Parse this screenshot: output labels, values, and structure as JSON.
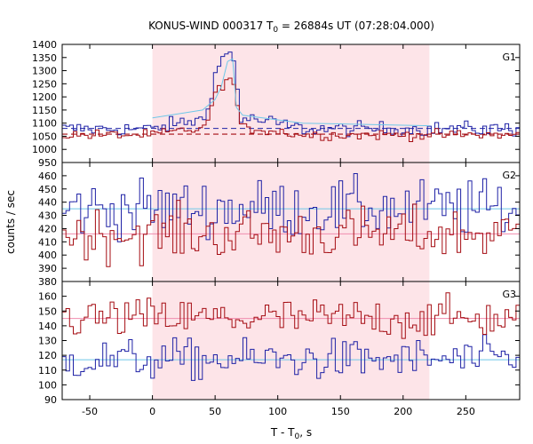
{
  "figure": {
    "title_main": "KONUS-WIND 000317 T",
    "title_sub": "0",
    "title_rest": " = 26884s UT (07:28:04.000)",
    "xlabel_main": "T - T",
    "xlabel_sub": "0",
    "xlabel_rest": ", s",
    "ylabel": "counts / sec"
  },
  "chart_data": {
    "type": "line",
    "x_range": [
      -72,
      293
    ],
    "x_ticks": [
      -50,
      0,
      50,
      100,
      150,
      200,
      250
    ],
    "shaded_interval": [
      0,
      221
    ],
    "bin_width": 2.944,
    "colors": {
      "blue": "#1f22a6",
      "red": "#a50d13",
      "light_blue": "#6ec8e8",
      "pink": "#f08cae",
      "shade": "#fde4e8",
      "dashed": "#a50d13"
    },
    "panels": [
      {
        "label": "G1",
        "ylim": [
          950,
          1400
        ],
        "yticks": [
          950,
          1000,
          1050,
          1100,
          1150,
          1200,
          1250,
          1300,
          1350,
          1400
        ],
        "blue_baseline": 1078,
        "red_baseline": 1055,
        "dashed_level": 1058,
        "dashed_level_2": 1080,
        "blue_noise": 14,
        "red_noise": 10,
        "peak": {
          "start": 42,
          "center": 62,
          "end": 70,
          "blue_amp": 250,
          "red_amp": 185
        },
        "hump": {
          "start": 0,
          "end": 120,
          "blue_amp": 45,
          "red_amp": 30
        },
        "fit_blue": [
          [
            0,
            1120
          ],
          [
            40,
            1150
          ],
          [
            50,
            1190
          ],
          [
            55,
            1240
          ],
          [
            60,
            1335
          ],
          [
            64,
            1345
          ],
          [
            67,
            1160
          ],
          [
            72,
            1130
          ],
          [
            120,
            1100
          ],
          [
            221,
            1090
          ]
        ]
      },
      {
        "label": "G2",
        "ylim": [
          380,
          470
        ],
        "yticks": [
          380,
          390,
          400,
          410,
          420,
          430,
          440,
          450,
          460
        ],
        "blue_baseline": 435,
        "red_baseline": 416,
        "light_blue_level": 435,
        "pink_level": 416,
        "blue_noise": 11,
        "red_noise": 10
      },
      {
        "label": "G3",
        "ylim": [
          90,
          170
        ],
        "yticks": [
          90,
          100,
          110,
          120,
          130,
          140,
          150,
          160
        ],
        "blue_baseline": 117,
        "red_baseline": 145,
        "light_blue_level": 117,
        "pink_level": 145,
        "blue_noise": 7,
        "red_noise": 7
      }
    ]
  }
}
